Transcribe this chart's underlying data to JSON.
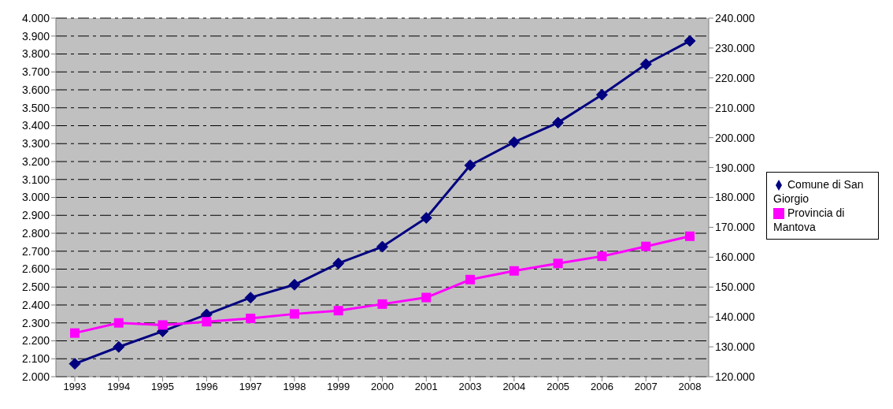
{
  "chart_data": {
    "type": "line",
    "categories": [
      "1993",
      "1994",
      "1995",
      "1996",
      "1997",
      "1998",
      "1999",
      "2000",
      "2001",
      "2003",
      "2004",
      "2005",
      "2006",
      "2007",
      "2008"
    ],
    "series": [
      {
        "name": "Comune di San Giorgio",
        "color": "#000080",
        "marker": "diamond",
        "axis": "y",
        "values": [
          2072,
          2166,
          2253,
          2347,
          2441,
          2513,
          2632,
          2725,
          2886,
          3179,
          3308,
          3417,
          3573,
          3743,
          3873
        ]
      },
      {
        "name": "Provincia di Mantova",
        "color": "#ff00ff",
        "marker": "square",
        "axis": "y2",
        "values": [
          134600,
          138000,
          137300,
          138400,
          139500,
          141000,
          142100,
          144300,
          146500,
          152500,
          155400,
          157900,
          160300,
          163600,
          167000
        ]
      }
    ],
    "ylim": [
      2000,
      4000
    ],
    "yticks": [
      {
        "value": 2000,
        "label": "2.000"
      },
      {
        "value": 2100,
        "label": "2.100"
      },
      {
        "value": 2200,
        "label": "2.200"
      },
      {
        "value": 2300,
        "label": "2.300"
      },
      {
        "value": 2400,
        "label": "2.400"
      },
      {
        "value": 2500,
        "label": "2.500"
      },
      {
        "value": 2600,
        "label": "2.600"
      },
      {
        "value": 2700,
        "label": "2.700"
      },
      {
        "value": 2800,
        "label": "2.800"
      },
      {
        "value": 2900,
        "label": "2.900"
      },
      {
        "value": 3000,
        "label": "3.000"
      },
      {
        "value": 3100,
        "label": "3.100"
      },
      {
        "value": 3200,
        "label": "3.200"
      },
      {
        "value": 3300,
        "label": "3.300"
      },
      {
        "value": 3400,
        "label": "3.400"
      },
      {
        "value": 3500,
        "label": "3.500"
      },
      {
        "value": 3600,
        "label": "3.600"
      },
      {
        "value": 3700,
        "label": "3.700"
      },
      {
        "value": 3800,
        "label": "3.800"
      },
      {
        "value": 3900,
        "label": "3.900"
      },
      {
        "value": 4000,
        "label": "4.000"
      }
    ],
    "y2lim": [
      120000,
      240000
    ],
    "y2ticks": [
      {
        "value": 120000,
        "label": "120.000"
      },
      {
        "value": 130000,
        "label": "130.000"
      },
      {
        "value": 140000,
        "label": "140.000"
      },
      {
        "value": 150000,
        "label": "150.000"
      },
      {
        "value": 160000,
        "label": "160.000"
      },
      {
        "value": 170000,
        "label": "170.000"
      },
      {
        "value": 180000,
        "label": "180.000"
      },
      {
        "value": 190000,
        "label": "190.000"
      },
      {
        "value": 200000,
        "label": "200.000"
      },
      {
        "value": 210000,
        "label": "210.000"
      },
      {
        "value": 220000,
        "label": "220.000"
      },
      {
        "value": 230000,
        "label": "230.000"
      },
      {
        "value": 240000,
        "label": "240.000"
      }
    ],
    "grid": "y",
    "legend": "right",
    "line_style": "solid"
  }
}
